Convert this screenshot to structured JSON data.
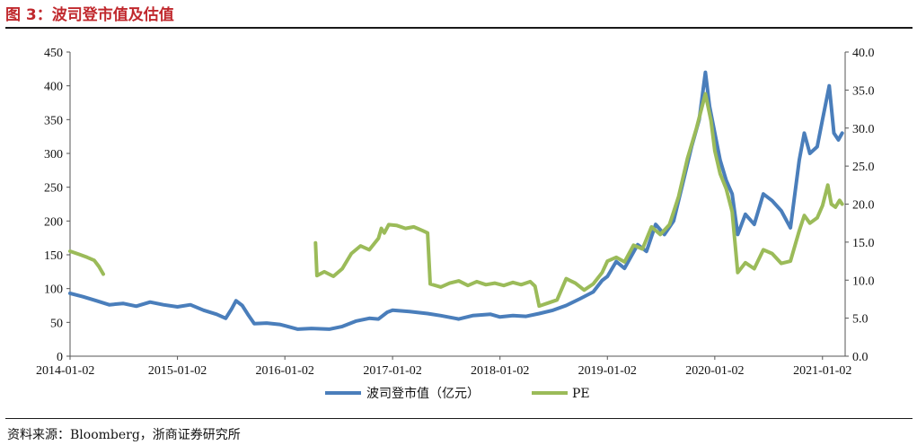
{
  "title": "图 3：波司登市值及估值",
  "source": "资料来源：Bloomberg，浙商证券研究所",
  "chart_data": {
    "type": "line",
    "x_tick_labels": [
      "2014-01-02",
      "2015-01-02",
      "2016-01-02",
      "2017-01-02",
      "2018-01-02",
      "2019-01-02",
      "2020-01-02",
      "2021-01-02"
    ],
    "y_left": {
      "min": 0,
      "max": 450,
      "ticks": [
        "0",
        "50",
        "100",
        "150",
        "200",
        "250",
        "300",
        "350",
        "400",
        "450"
      ]
    },
    "y_right": {
      "min": 0,
      "max": 40,
      "ticks": [
        "0.0",
        "5.0",
        "10.0",
        "15.0",
        "20.0",
        "25.0",
        "30.0",
        "35.0",
        "40.0"
      ]
    },
    "legend_position": "bottom",
    "grid": false,
    "series": [
      {
        "name": "波司登市值（亿元）",
        "axis": "left",
        "color": "#4a7ebb",
        "points": [
          [
            "2014-01-02",
            93
          ],
          [
            "2014-02-15",
            88
          ],
          [
            "2014-04-01",
            82
          ],
          [
            "2014-05-15",
            76
          ],
          [
            "2014-07-01",
            78
          ],
          [
            "2014-08-15",
            74
          ],
          [
            "2014-10-01",
            80
          ],
          [
            "2014-11-15",
            76
          ],
          [
            "2015-01-02",
            73
          ],
          [
            "2015-02-15",
            76
          ],
          [
            "2015-04-01",
            68
          ],
          [
            "2015-05-15",
            62
          ],
          [
            "2015-06-15",
            56
          ],
          [
            "2015-07-05",
            70
          ],
          [
            "2015-07-20",
            82
          ],
          [
            "2015-08-10",
            75
          ],
          [
            "2015-09-01",
            60
          ],
          [
            "2015-09-20",
            48
          ],
          [
            "2015-11-01",
            49
          ],
          [
            "2015-12-15",
            47
          ],
          [
            "2016-01-02",
            45
          ],
          [
            "2016-02-15",
            40
          ],
          [
            "2016-04-01",
            41
          ],
          [
            "2016-06-01",
            40
          ],
          [
            "2016-07-15",
            44
          ],
          [
            "2016-09-01",
            52
          ],
          [
            "2016-10-15",
            56
          ],
          [
            "2016-11-15",
            55
          ],
          [
            "2016-12-15",
            65
          ],
          [
            "2017-01-02",
            68
          ],
          [
            "2017-03-01",
            66
          ],
          [
            "2017-05-01",
            63
          ],
          [
            "2017-06-15",
            60
          ],
          [
            "2017-08-15",
            55
          ],
          [
            "2017-10-01",
            60
          ],
          [
            "2017-12-01",
            62
          ],
          [
            "2018-01-02",
            58
          ],
          [
            "2018-02-15",
            60
          ],
          [
            "2018-04-01",
            59
          ],
          [
            "2018-05-15",
            63
          ],
          [
            "2018-07-01",
            68
          ],
          [
            "2018-08-15",
            75
          ],
          [
            "2018-10-01",
            85
          ],
          [
            "2018-11-15",
            95
          ],
          [
            "2018-12-15",
            112
          ],
          [
            "2019-01-02",
            118
          ],
          [
            "2019-02-01",
            140
          ],
          [
            "2019-03-01",
            130
          ],
          [
            "2019-04-15",
            165
          ],
          [
            "2019-05-15",
            155
          ],
          [
            "2019-06-15",
            195
          ],
          [
            "2019-07-15",
            180
          ],
          [
            "2019-08-15",
            200
          ],
          [
            "2019-09-15",
            255
          ],
          [
            "2019-10-15",
            310
          ],
          [
            "2019-11-10",
            350
          ],
          [
            "2019-12-01",
            420
          ],
          [
            "2019-12-15",
            370
          ],
          [
            "2020-01-02",
            330
          ],
          [
            "2020-01-20",
            290
          ],
          [
            "2020-02-10",
            260
          ],
          [
            "2020-03-01",
            240
          ],
          [
            "2020-03-20",
            180
          ],
          [
            "2020-04-15",
            210
          ],
          [
            "2020-05-15",
            195
          ],
          [
            "2020-06-15",
            240
          ],
          [
            "2020-07-15",
            230
          ],
          [
            "2020-08-15",
            215
          ],
          [
            "2020-09-15",
            190
          ],
          [
            "2020-10-15",
            290
          ],
          [
            "2020-11-01",
            330
          ],
          [
            "2020-11-20",
            300
          ],
          [
            "2020-12-15",
            310
          ],
          [
            "2021-01-02",
            350
          ],
          [
            "2021-01-25",
            400
          ],
          [
            "2021-02-10",
            330
          ],
          [
            "2021-02-25",
            320
          ],
          [
            "2021-03-10",
            330
          ]
        ]
      },
      {
        "name": "PE",
        "axis": "right",
        "color": "#9bbb59",
        "segments": [
          [
            [
              "2014-01-02",
              13.8
            ],
            [
              "2014-02-01",
              13.4
            ],
            [
              "2014-03-01",
              13.0
            ],
            [
              "2014-03-25",
              12.6
            ],
            [
              "2014-04-10",
              11.8
            ],
            [
              "2014-04-25",
              10.8
            ]
          ],
          [
            [
              "2016-04-15",
              14.9
            ],
            [
              "2016-04-20",
              10.6
            ],
            [
              "2016-05-15",
              11.1
            ],
            [
              "2016-06-15",
              10.5
            ],
            [
              "2016-07-15",
              11.5
            ],
            [
              "2016-08-15",
              13.5
            ],
            [
              "2016-09-15",
              14.5
            ],
            [
              "2016-10-15",
              14.0
            ],
            [
              "2016-11-15",
              15.5
            ],
            [
              "2016-11-25",
              16.8
            ],
            [
              "2016-12-05",
              16.2
            ],
            [
              "2016-12-20",
              17.3
            ],
            [
              "2017-01-15",
              17.2
            ],
            [
              "2017-02-15",
              16.8
            ],
            [
              "2017-03-15",
              17.0
            ],
            [
              "2017-04-15",
              16.5
            ],
            [
              "2017-05-01",
              16.2
            ],
            [
              "2017-05-10",
              9.5
            ],
            [
              "2017-06-15",
              9.1
            ],
            [
              "2017-07-15",
              9.6
            ],
            [
              "2017-08-15",
              9.9
            ],
            [
              "2017-09-15",
              9.3
            ],
            [
              "2017-10-15",
              9.8
            ],
            [
              "2017-11-15",
              9.4
            ],
            [
              "2017-12-15",
              9.6
            ],
            [
              "2018-01-15",
              9.3
            ],
            [
              "2018-02-15",
              9.7
            ],
            [
              "2018-03-15",
              9.4
            ],
            [
              "2018-04-15",
              9.8
            ],
            [
              "2018-05-01",
              9.2
            ],
            [
              "2018-05-15",
              6.6
            ],
            [
              "2018-06-15",
              7.0
            ],
            [
              "2018-07-15",
              7.4
            ],
            [
              "2018-08-15",
              10.2
            ],
            [
              "2018-09-15",
              9.6
            ],
            [
              "2018-10-15",
              8.7
            ],
            [
              "2018-11-15",
              9.5
            ],
            [
              "2018-12-15",
              11.0
            ],
            [
              "2019-01-02",
              12.5
            ],
            [
              "2019-02-01",
              13.0
            ],
            [
              "2019-03-01",
              12.4
            ],
            [
              "2019-04-01",
              14.6
            ],
            [
              "2019-05-01",
              14.1
            ],
            [
              "2019-06-01",
              17.0
            ],
            [
              "2019-07-01",
              16.0
            ],
            [
              "2019-08-01",
              17.3
            ],
            [
              "2019-09-01",
              21.0
            ],
            [
              "2019-10-01",
              26.0
            ],
            [
              "2019-11-01",
              30.0
            ],
            [
              "2019-12-01",
              34.5
            ],
            [
              "2019-12-20",
              31.0
            ],
            [
              "2020-01-02",
              27.0
            ],
            [
              "2020-01-20",
              24.0
            ],
            [
              "2020-02-10",
              22.0
            ],
            [
              "2020-03-01",
              19.0
            ],
            [
              "2020-03-20",
              11.0
            ],
            [
              "2020-04-15",
              12.3
            ],
            [
              "2020-05-15",
              11.5
            ],
            [
              "2020-06-15",
              14.0
            ],
            [
              "2020-07-15",
              13.5
            ],
            [
              "2020-08-15",
              12.2
            ],
            [
              "2020-09-15",
              12.5
            ],
            [
              "2020-10-15",
              16.5
            ],
            [
              "2020-11-01",
              18.5
            ],
            [
              "2020-11-20",
              17.5
            ],
            [
              "2020-12-15",
              18.2
            ],
            [
              "2021-01-02",
              19.8
            ],
            [
              "2021-01-20",
              22.5
            ],
            [
              "2021-02-01",
              20.0
            ],
            [
              "2021-02-15",
              19.6
            ],
            [
              "2021-03-01",
              20.5
            ],
            [
              "2021-03-10",
              20.0
            ]
          ]
        ]
      }
    ]
  }
}
